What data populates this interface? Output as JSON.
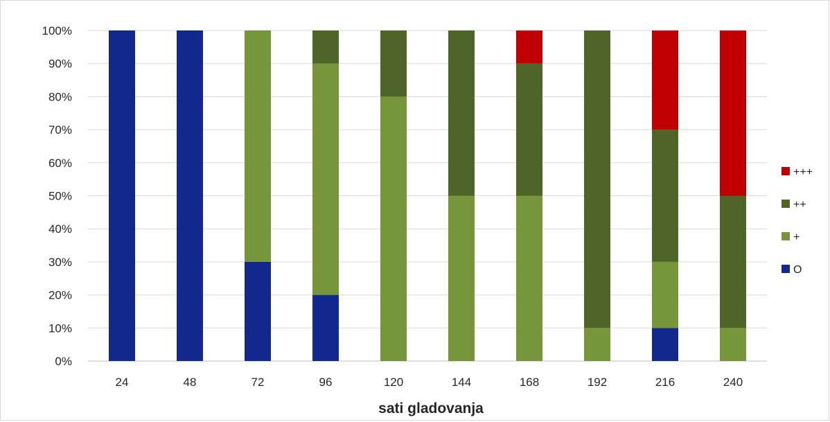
{
  "chart_data": {
    "type": "bar",
    "stacked": "percent",
    "categories": [
      "24",
      "48",
      "72",
      "96",
      "120",
      "144",
      "168",
      "192",
      "216",
      "240"
    ],
    "series": [
      {
        "name": "O",
        "color": "#13288c",
        "values": [
          100,
          100,
          30,
          20,
          0,
          0,
          0,
          0,
          10,
          0
        ]
      },
      {
        "name": "+",
        "color": "#77953b",
        "values": [
          0,
          0,
          70,
          70,
          80,
          50,
          50,
          10,
          20,
          10
        ]
      },
      {
        "name": "++",
        "color": "#4e6428",
        "values": [
          0,
          0,
          0,
          10,
          20,
          50,
          40,
          90,
          40,
          40
        ]
      },
      {
        "name": "+++",
        "color": "#c00000",
        "values": [
          0,
          0,
          0,
          0,
          0,
          0,
          10,
          0,
          30,
          50
        ]
      }
    ],
    "xlabel": "sati gladovanja",
    "ylabel": "",
    "ylim": [
      0,
      100
    ],
    "y_ticks": [
      "0%",
      "10%",
      "20%",
      "30%",
      "40%",
      "50%",
      "60%",
      "70%",
      "80%",
      "90%",
      "100%"
    ],
    "grid": true,
    "legend_position": "right",
    "legend_order": [
      "+++",
      "++",
      "+",
      "O"
    ]
  }
}
